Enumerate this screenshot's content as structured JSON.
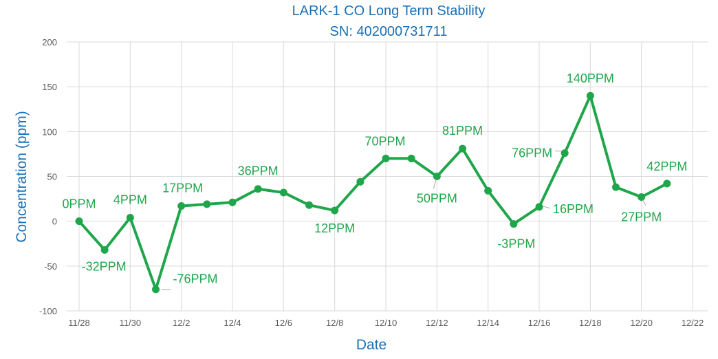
{
  "chart_data": {
    "type": "line",
    "title": "LARK-1 CO  Long Term Stability",
    "subtitle": "SN: 402000731711",
    "xlabel": "Date",
    "ylabel": "Concentration (ppm)",
    "ylim": [
      -100,
      200
    ],
    "y_ticks": [
      -100,
      -50,
      0,
      50,
      100,
      150,
      200
    ],
    "x_ticks": [
      "11/28",
      "11/30",
      "12/2",
      "12/4",
      "12/6",
      "12/8",
      "12/10",
      "12/12",
      "12/14",
      "12/16",
      "12/18",
      "12/20",
      "12/22"
    ],
    "xlim": [
      "11/28",
      "12/22"
    ],
    "grid": true,
    "legend": "none",
    "series": [
      {
        "color": "#1fa64a",
        "x": [
          "11/28",
          "11/29",
          "11/30",
          "12/1",
          "12/2",
          "12/3",
          "12/4",
          "12/5",
          "12/6",
          "12/7",
          "12/8",
          "12/9",
          "12/10",
          "12/11",
          "12/12",
          "12/13",
          "12/14",
          "12/15",
          "12/16",
          "12/17",
          "12/18",
          "12/19",
          "12/20",
          "12/21"
        ],
        "values": [
          0,
          -32,
          4,
          -76,
          17,
          19,
          21,
          36,
          32,
          18,
          12,
          44,
          70,
          70,
          50,
          81,
          34,
          -3,
          16,
          76,
          140,
          38,
          27,
          42
        ],
        "labels": [
          "0PPM",
          "-32PPM",
          "4PPM",
          "-76PPM",
          "17PPM",
          null,
          null,
          "36PPM",
          null,
          null,
          "12PPM",
          null,
          "70PPM",
          null,
          "50PPM",
          "81PPM",
          null,
          "-3PPM",
          "16PPM",
          "76PPM",
          "140PPM",
          null,
          "27PPM",
          "42PPM"
        ]
      }
    ]
  },
  "colors": {
    "title": "#1a6fb5",
    "series": "#1fa64a",
    "grid": "#d9d9d9",
    "tick_text": "#595959"
  }
}
